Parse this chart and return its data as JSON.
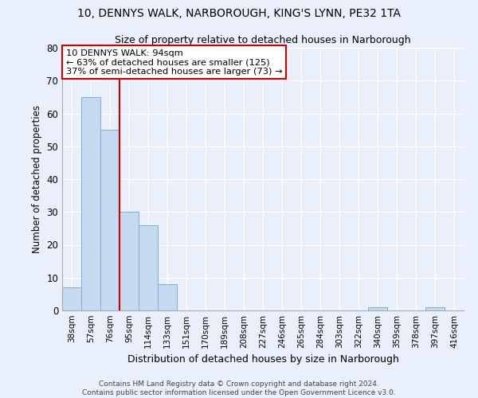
{
  "title_line1": "10, DENNYS WALK, NARBOROUGH, KING'S LYNN, PE32 1TA",
  "title_line2": "Size of property relative to detached houses in Narborough",
  "categories": [
    "38sqm",
    "57sqm",
    "76sqm",
    "95sqm",
    "114sqm",
    "133sqm",
    "151sqm",
    "170sqm",
    "189sqm",
    "208sqm",
    "227sqm",
    "246sqm",
    "265sqm",
    "284sqm",
    "303sqm",
    "322sqm",
    "340sqm",
    "359sqm",
    "378sqm",
    "397sqm",
    "416sqm"
  ],
  "values": [
    7,
    65,
    55,
    30,
    26,
    8,
    0,
    0,
    0,
    0,
    0,
    0,
    0,
    0,
    0,
    0,
    1,
    0,
    0,
    1,
    0
  ],
  "bar_color": "#c5d9f1",
  "bar_edge_color": "#7bafd4",
  "property_label": "10 DENNYS WALK: 94sqm",
  "annotation_line2": "← 63% of detached houses are smaller (125)",
  "annotation_line3": "37% of semi-detached houses are larger (73) →",
  "vline_color": "#cc0000",
  "vline_x": 2.5,
  "ylabel": "Number of detached properties",
  "xlabel": "Distribution of detached houses by size in Narborough",
  "ylim": [
    0,
    80
  ],
  "yticks": [
    0,
    10,
    20,
    30,
    40,
    50,
    60,
    70,
    80
  ],
  "footnote_line1": "Contains HM Land Registry data © Crown copyright and database right 2024.",
  "footnote_line2": "Contains public sector information licensed under the Open Government Licence v3.0.",
  "bg_color": "#eaf0fb",
  "plot_bg_color": "#eaf0fb",
  "grid_color": "#ffffff"
}
